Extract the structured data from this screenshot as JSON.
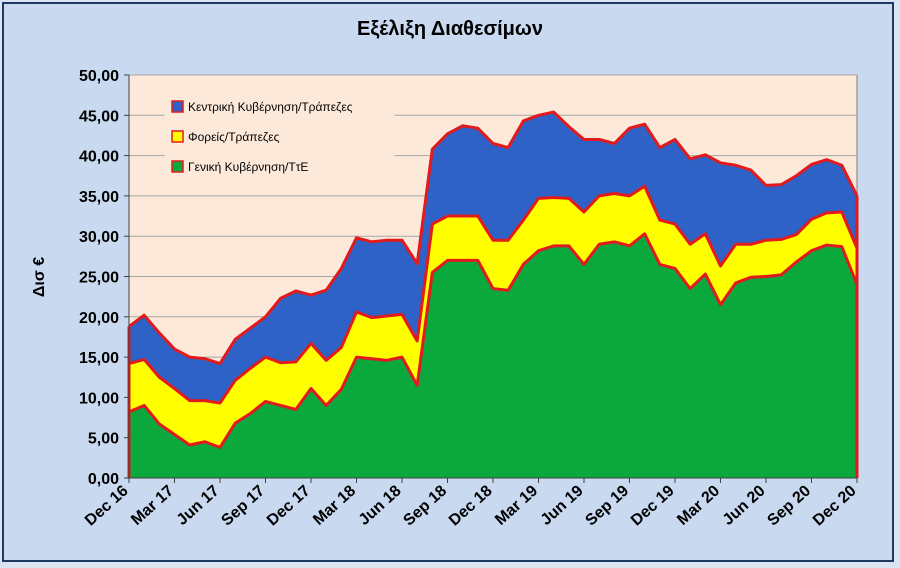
{
  "colors": {
    "background": "#c9daf0",
    "plot_background": "#fde9d9",
    "outline": "#e31a1c",
    "central": "#2f62c6",
    "bodies": "#ffff00",
    "general": "#0aa83d"
  },
  "chart_data": {
    "type": "area",
    "stacked": true,
    "title": "Εξέλιξη Διαθεσίμων",
    "ylabel": "Δισ €",
    "xlabel": "",
    "ylim": [
      0,
      50
    ],
    "yticks": [
      "0,00",
      "5,00",
      "10,00",
      "15,00",
      "20,00",
      "25,00",
      "30,00",
      "35,00",
      "40,00",
      "45,00",
      "50,00"
    ],
    "grid": true,
    "legend_position": "top-left",
    "x_tick_labels": [
      "Dec 16",
      "Mar 17",
      "Jun 17",
      "Sep 17",
      "Dec 17",
      "Mar 18",
      "Jun 18",
      "Sep 18",
      "Dec 18",
      "Mar 19",
      "Jun 19",
      "Sep 19",
      "Dec 19",
      "Mar 20",
      "Jun 20",
      "Sep 20",
      "Dec 20"
    ],
    "x_tick_every": 3,
    "categories": [
      "Dec 16",
      "Jan 17",
      "Feb 17",
      "Mar 17",
      "Apr 17",
      "May 17",
      "Jun 17",
      "Jul 17",
      "Aug 17",
      "Sep 17",
      "Oct 17",
      "Nov 17",
      "Dec 17",
      "Jan 18",
      "Feb 18",
      "Mar 18",
      "Apr 18",
      "May 18",
      "Jun 18",
      "Jul 18",
      "Aug 18",
      "Sep 18",
      "Oct 18",
      "Nov 18",
      "Dec 18",
      "Jan 19",
      "Feb 19",
      "Mar 19",
      "Apr 19",
      "May 19",
      "Jun 19",
      "Jul 19",
      "Aug 19",
      "Sep 19",
      "Oct 19",
      "Nov 19",
      "Dec 19",
      "Jan 20",
      "Feb 20",
      "Mar 20",
      "Apr 20",
      "May 20",
      "Jun 20",
      "Jul 20",
      "Aug 20",
      "Sep 20",
      "Oct 20",
      "Nov 20",
      "Dec 20"
    ],
    "series": [
      {
        "name": "Γενική Κυβέρνηση/ΤτΕ",
        "values": [
          8.2,
          9.0,
          6.7,
          5.4,
          4.1,
          4.5,
          3.8,
          6.8,
          8.0,
          9.5,
          9.0,
          8.5,
          11.1,
          9.0,
          11.0,
          15.0,
          14.8,
          14.6,
          15.0,
          11.5,
          25.5,
          27.0,
          27.0,
          27.0,
          23.5,
          23.3,
          26.5,
          28.2,
          28.8,
          28.8,
          26.5,
          29.0,
          29.3,
          28.8,
          30.3,
          26.5,
          26.0,
          23.5,
          25.3,
          21.5,
          24.2,
          24.9,
          25.0,
          25.2,
          26.8,
          28.2,
          28.9,
          28.7,
          24.0
        ]
      },
      {
        "name": "Φορείς/Τράπεζες",
        "values": [
          6.0,
          5.7,
          5.8,
          5.7,
          5.5,
          5.1,
          5.5,
          5.3,
          5.6,
          5.5,
          5.3,
          5.9,
          5.6,
          5.6,
          5.2,
          5.6,
          5.1,
          5.5,
          5.3,
          5.5,
          6.0,
          5.5,
          5.5,
          5.5,
          6.0,
          6.2,
          5.5,
          6.5,
          6.0,
          5.9,
          6.5,
          6.0,
          6.0,
          6.2,
          5.9,
          5.5,
          5.5,
          5.5,
          5.0,
          4.8,
          4.8,
          4.1,
          4.5,
          4.4,
          3.4,
          3.9,
          4.0,
          4.3,
          4.5
        ]
      },
      {
        "name": "Κεντρική Κυβέρνηση/Τράπεζες",
        "values": [
          4.6,
          5.5,
          5.5,
          4.9,
          5.4,
          5.2,
          4.9,
          5.1,
          5.0,
          5.0,
          8.0,
          8.8,
          6.0,
          8.7,
          9.8,
          9.2,
          9.4,
          9.4,
          9.2,
          9.6,
          9.3,
          10.2,
          11.2,
          10.9,
          12.0,
          11.5,
          12.3,
          10.3,
          10.6,
          8.9,
          9.0,
          7.0,
          6.2,
          8.4,
          7.7,
          9.0,
          10.5,
          10.6,
          9.8,
          12.8,
          9.8,
          9.2,
          6.8,
          6.8,
          7.3,
          6.8,
          6.6,
          5.8,
          6.5
        ]
      }
    ]
  }
}
